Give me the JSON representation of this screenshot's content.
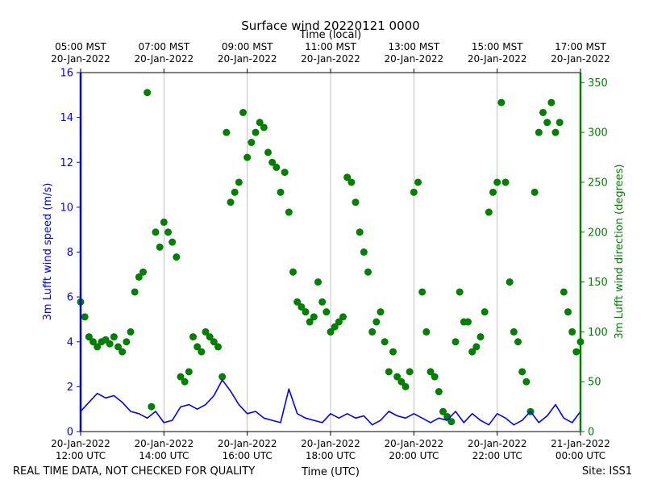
{
  "chart_data": {
    "type": "scatter",
    "title": "Surface wind 20220121 0000",
    "top_axis_label": "Time (local)",
    "xlabel": "Time (UTC)",
    "ylabel_left": "3m Lufft wind speed (m/s)",
    "ylabel_right": "3m Lufft wind direction (degrees)",
    "footer_left": "REAL TIME DATA, NOT CHECKED FOR QUALITY",
    "footer_right": "Site: ISS1",
    "x_range_hours_utc": [
      12,
      24
    ],
    "ylim_left": [
      0,
      16
    ],
    "ylim_right": [
      0,
      360
    ],
    "colors": {
      "speed": "#0000ff",
      "direction": "#008000",
      "grid": "#b0b0b0",
      "text": "#000000"
    },
    "bottom_ticks": [
      {
        "hour": 12,
        "line1": "20-Jan-2022",
        "line2": "12:00 UTC"
      },
      {
        "hour": 14,
        "line1": "20-Jan-2022",
        "line2": "14:00 UTC"
      },
      {
        "hour": 16,
        "line1": "20-Jan-2022",
        "line2": "16:00 UTC"
      },
      {
        "hour": 18,
        "line1": "20-Jan-2022",
        "line2": "18:00 UTC"
      },
      {
        "hour": 20,
        "line1": "20-Jan-2022",
        "line2": "20:00 UTC"
      },
      {
        "hour": 22,
        "line1": "20-Jan-2022",
        "line2": "22:00 UTC"
      },
      {
        "hour": 24,
        "line1": "21-Jan-2022",
        "line2": "00:00 UTC"
      }
    ],
    "top_ticks": [
      {
        "hour": 12,
        "line1": "05:00 MST",
        "line2": "20-Jan-2022"
      },
      {
        "hour": 14,
        "line1": "07:00 MST",
        "line2": "20-Jan-2022"
      },
      {
        "hour": 16,
        "line1": "09:00 MST",
        "line2": "20-Jan-2022"
      },
      {
        "hour": 18,
        "line1": "11:00 MST",
        "line2": "20-Jan-2022"
      },
      {
        "hour": 20,
        "line1": "13:00 MST",
        "line2": "20-Jan-2022"
      },
      {
        "hour": 22,
        "line1": "15:00 MST",
        "line2": "20-Jan-2022"
      },
      {
        "hour": 24,
        "line1": "17:00 MST",
        "line2": "20-Jan-2022"
      }
    ],
    "left_ticks": [
      0,
      2,
      4,
      6,
      8,
      10,
      12,
      14,
      16
    ],
    "right_ticks": [
      0,
      50,
      100,
      150,
      200,
      250,
      300,
      350
    ],
    "series": [
      {
        "name": "3m Lufft wind speed (m/s)",
        "type": "line",
        "x": [
          12.0,
          12.2,
          12.4,
          12.6,
          12.8,
          13.0,
          13.2,
          13.4,
          13.6,
          13.8,
          14.0,
          14.2,
          14.4,
          14.6,
          14.8,
          15.0,
          15.2,
          15.4,
          15.6,
          15.8,
          16.0,
          16.2,
          16.4,
          16.6,
          16.8,
          17.0,
          17.2,
          17.4,
          17.6,
          17.8,
          18.0,
          18.2,
          18.4,
          18.6,
          18.8,
          19.0,
          19.2,
          19.4,
          19.6,
          19.8,
          20.0,
          20.2,
          20.4,
          20.6,
          20.8,
          21.0,
          21.2,
          21.4,
          21.6,
          21.8,
          22.0,
          22.2,
          22.4,
          22.6,
          22.8,
          23.0,
          23.2,
          23.4,
          23.6,
          23.8,
          24.0
        ],
        "y": [
          0.9,
          1.3,
          1.7,
          1.5,
          1.6,
          1.3,
          0.9,
          0.8,
          0.6,
          0.9,
          0.4,
          0.5,
          1.1,
          1.2,
          1.0,
          1.2,
          1.6,
          2.3,
          1.8,
          1.2,
          0.8,
          0.9,
          0.6,
          0.5,
          0.4,
          1.9,
          0.8,
          0.6,
          0.5,
          0.4,
          0.8,
          0.6,
          0.8,
          0.6,
          0.7,
          0.3,
          0.5,
          0.9,
          0.7,
          0.6,
          0.8,
          0.6,
          0.4,
          0.6,
          0.5,
          0.9,
          0.4,
          0.8,
          0.5,
          0.3,
          0.8,
          0.6,
          0.3,
          0.5,
          0.9,
          0.4,
          0.7,
          1.2,
          0.6,
          0.4,
          0.9
        ]
      },
      {
        "name": "3m Lufft wind direction (degrees)",
        "type": "scatter",
        "x": [
          12.0,
          12.1,
          12.2,
          12.3,
          12.4,
          12.5,
          12.6,
          12.7,
          12.8,
          12.9,
          13.0,
          13.1,
          13.2,
          13.3,
          13.4,
          13.5,
          13.6,
          13.7,
          13.8,
          13.9,
          14.0,
          14.1,
          14.2,
          14.3,
          14.4,
          14.5,
          14.6,
          14.7,
          14.8,
          14.9,
          15.0,
          15.1,
          15.2,
          15.3,
          15.4,
          15.5,
          15.6,
          15.7,
          15.8,
          15.9,
          16.0,
          16.1,
          16.2,
          16.3,
          16.4,
          16.5,
          16.6,
          16.7,
          16.8,
          16.9,
          17.0,
          17.1,
          17.2,
          17.3,
          17.4,
          17.5,
          17.6,
          17.7,
          17.8,
          17.9,
          18.0,
          18.1,
          18.2,
          18.3,
          18.4,
          18.5,
          18.6,
          18.7,
          18.8,
          18.9,
          19.0,
          19.1,
          19.2,
          19.3,
          19.4,
          19.5,
          19.6,
          19.7,
          19.8,
          19.9,
          20.0,
          20.1,
          20.2,
          20.3,
          20.4,
          20.5,
          20.6,
          20.7,
          20.8,
          20.9,
          21.0,
          21.1,
          21.2,
          21.3,
          21.4,
          21.5,
          21.6,
          21.7,
          21.8,
          21.9,
          22.0,
          22.1,
          22.2,
          22.3,
          22.4,
          22.5,
          22.6,
          22.7,
          22.8,
          22.9,
          23.0,
          23.1,
          23.2,
          23.3,
          23.4,
          23.5,
          23.6,
          23.7,
          23.8,
          23.9,
          24.0
        ],
        "y": [
          130,
          115,
          95,
          90,
          85,
          90,
          92,
          88,
          95,
          85,
          80,
          90,
          100,
          140,
          155,
          160,
          340,
          25,
          200,
          185,
          210,
          200,
          190,
          175,
          55,
          50,
          60,
          95,
          85,
          80,
          100,
          95,
          90,
          85,
          55,
          300,
          230,
          240,
          250,
          320,
          275,
          290,
          300,
          310,
          305,
          280,
          270,
          265,
          240,
          260,
          220,
          160,
          130,
          125,
          120,
          110,
          115,
          150,
          130,
          120,
          100,
          105,
          110,
          115,
          255,
          250,
          230,
          200,
          180,
          160,
          100,
          110,
          120,
          90,
          60,
          80,
          55,
          50,
          45,
          60,
          240,
          250,
          140,
          100,
          60,
          55,
          40,
          20,
          15,
          10,
          90,
          140,
          110,
          110,
          80,
          85,
          95,
          120,
          220,
          240,
          250,
          330,
          250,
          150,
          100,
          90,
          60,
          50,
          20,
          240,
          300,
          320,
          310,
          330,
          300,
          310,
          140,
          120,
          100,
          80,
          90
        ]
      }
    ]
  }
}
